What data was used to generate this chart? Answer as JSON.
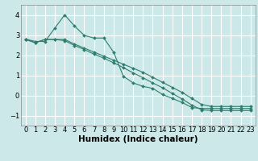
{
  "background_color": "#cce8e8",
  "grid_color": "#ffffff",
  "line_color": "#2e7d6e",
  "xlabel": "Humidex (Indice chaleur)",
  "xlabel_fontsize": 7.5,
  "tick_fontsize": 6,
  "ylim": [
    -1.5,
    4.5
  ],
  "xlim": [
    -0.5,
    23.5
  ],
  "yticks": [
    -1,
    0,
    1,
    2,
    3,
    4
  ],
  "xticks": [
    0,
    1,
    2,
    3,
    4,
    5,
    6,
    7,
    8,
    9,
    10,
    11,
    12,
    13,
    14,
    15,
    16,
    17,
    18,
    19,
    20,
    21,
    22,
    23
  ],
  "series": [
    {
      "x": [
        0,
        1,
        2,
        3,
        4,
        5,
        6,
        7,
        8,
        9,
        10,
        11,
        12,
        13,
        14,
        15,
        16,
        17,
        18,
        19,
        20,
        21,
        22,
        23
      ],
      "y": [
        2.8,
        2.68,
        2.68,
        3.35,
        4.0,
        3.45,
        2.98,
        2.85,
        2.85,
        2.15,
        0.95,
        0.62,
        0.45,
        0.35,
        0.05,
        -0.15,
        -0.35,
        -0.6,
        -0.65,
        -0.65,
        -0.65,
        -0.65,
        -0.65,
        -0.65
      ]
    },
    {
      "x": [
        0,
        1,
        2,
        3,
        4,
        5,
        6,
        7,
        8,
        9,
        10,
        11,
        12,
        13,
        14,
        15,
        16,
        17,
        18,
        19,
        20,
        21,
        22,
        23
      ],
      "y": [
        2.78,
        2.62,
        2.78,
        2.78,
        2.78,
        2.55,
        2.35,
        2.15,
        1.95,
        1.75,
        1.55,
        1.35,
        1.15,
        0.9,
        0.65,
        0.4,
        0.15,
        -0.15,
        -0.45,
        -0.55,
        -0.55,
        -0.55,
        -0.55,
        -0.55
      ]
    },
    {
      "x": [
        0,
        1,
        2,
        3,
        4,
        5,
        6,
        7,
        8,
        9,
        10,
        11,
        12,
        13,
        14,
        15,
        16,
        17,
        18,
        19,
        20,
        21,
        22,
        23
      ],
      "y": [
        2.78,
        2.62,
        2.78,
        2.78,
        2.72,
        2.48,
        2.28,
        2.05,
        1.85,
        1.62,
        1.38,
        1.12,
        0.88,
        0.62,
        0.38,
        0.1,
        -0.18,
        -0.48,
        -0.72,
        -0.75,
        -0.75,
        -0.75,
        -0.75,
        -0.75
      ]
    }
  ]
}
